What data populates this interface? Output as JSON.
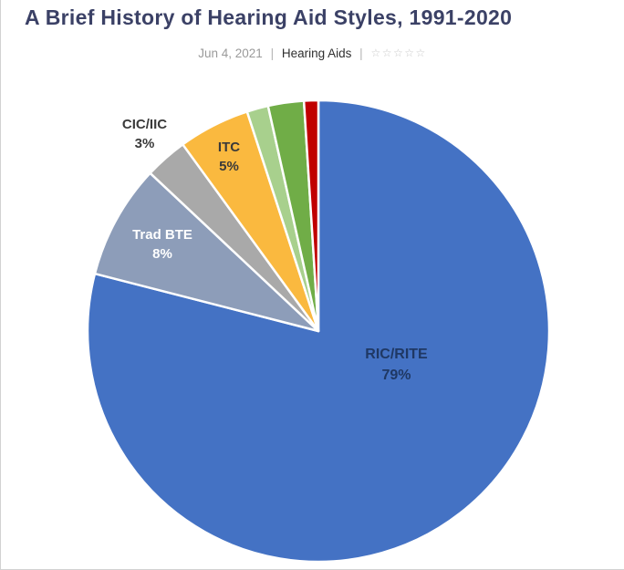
{
  "page": {
    "title": "A Brief History of Hearing Aid Styles, 1991-2020",
    "meta": {
      "date": "Jun 4, 2021",
      "sep": "|",
      "category": "Hearing Aids",
      "stars": "☆☆☆☆☆"
    }
  },
  "chart_data": {
    "type": "pie",
    "title": "A Brief History of Hearing Aid Styles, 1991-2020",
    "direction": "clockwise",
    "start_angle_deg": 0,
    "legend": "none",
    "categories": [
      "RIC/RITE",
      "Trad BTE",
      "CIC/IIC",
      "ITC",
      "",
      "",
      ""
    ],
    "values": [
      79,
      8,
      3,
      5,
      1.5,
      2.5,
      1
    ],
    "colors": [
      "#4472C4",
      "#8D9DB9",
      "#A9A9A9",
      "#FAB93F",
      "#A8D08D",
      "#70AD47",
      "#C00000"
    ],
    "labels": {
      "ric": {
        "name": "RIC/RITE",
        "pct": "79%"
      },
      "bte": {
        "name": "Trad BTE",
        "pct": "8%"
      },
      "cic": {
        "name": "CIC/IIC",
        "pct": "3%"
      },
      "itc": {
        "name": "ITC",
        "pct": "5%"
      }
    }
  }
}
